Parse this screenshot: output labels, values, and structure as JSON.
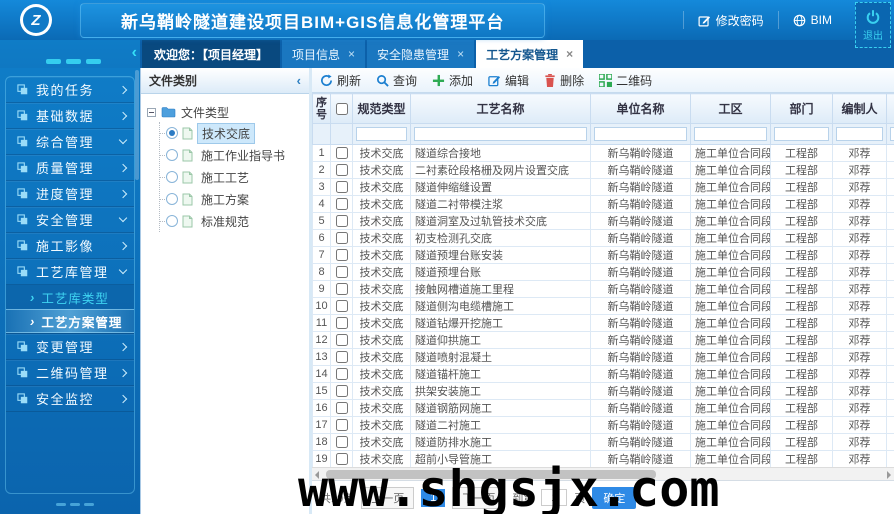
{
  "header": {
    "title": "新乌鞘岭隧道建设项目BIM+GIS信息化管理平台",
    "logo_letter": "Z",
    "actions": {
      "change_password": "修改密码",
      "bim": "BIM",
      "logout": "退出"
    }
  },
  "tabbar": {
    "welcome": "欢迎您：【项目经理】",
    "tabs": [
      {
        "label": "项目信息",
        "active": false
      },
      {
        "label": "安全隐患管理",
        "active": false
      },
      {
        "label": "工艺方案管理",
        "active": true
      }
    ]
  },
  "sidebar": {
    "items": [
      {
        "label": "我的任务",
        "arrow": "right"
      },
      {
        "label": "基础数据",
        "arrow": "right"
      },
      {
        "label": "综合管理",
        "arrow": "down"
      },
      {
        "label": "质量管理",
        "arrow": "right"
      },
      {
        "label": "进度管理",
        "arrow": "right"
      },
      {
        "label": "安全管理",
        "arrow": "down"
      },
      {
        "label": "施工影像",
        "arrow": "right"
      },
      {
        "label": "工艺库管理",
        "arrow": "down",
        "expanded": true,
        "children": [
          {
            "label": "工艺库类型",
            "active": false
          },
          {
            "label": "工艺方案管理",
            "active": true
          }
        ]
      },
      {
        "label": "变更管理",
        "arrow": "right"
      },
      {
        "label": "二维码管理",
        "arrow": "right"
      },
      {
        "label": "安全监控",
        "arrow": "right"
      }
    ]
  },
  "tree_panel": {
    "title": "文件类别",
    "root_label": "文件类型",
    "nodes": [
      {
        "label": "技术交底",
        "selected": true
      },
      {
        "label": "施工作业指导书",
        "selected": false
      },
      {
        "label": "施工工艺",
        "selected": false
      },
      {
        "label": "施工方案",
        "selected": false
      },
      {
        "label": "标准规范",
        "selected": false
      }
    ]
  },
  "toolbar": {
    "buttons": [
      {
        "label": "刷新",
        "icon": "refresh-icon",
        "color": "#1b7fd0"
      },
      {
        "label": "查询",
        "icon": "search-icon",
        "color": "#1b7fd0"
      },
      {
        "label": "添加",
        "icon": "plus-icon",
        "color": "#2eaa53"
      },
      {
        "label": "编辑",
        "icon": "edit-icon",
        "color": "#1b7fd0"
      },
      {
        "label": "删除",
        "icon": "trash-icon",
        "color": "#d9534f"
      },
      {
        "label": "二维码",
        "icon": "qrcode-icon",
        "color": "#2eaa53"
      }
    ]
  },
  "table": {
    "seq_label": "序号",
    "columns": [
      "规范类型",
      "工艺名称",
      "单位名称",
      "工区",
      "部门",
      "编制人"
    ],
    "rows": [
      {
        "no": "1",
        "type": "技术交底",
        "name": "隧道综合接地",
        "unit": "新乌鞘岭隧道",
        "zone": "施工单位合同段",
        "dept": "工程部",
        "author": "邓荐"
      },
      {
        "no": "2",
        "type": "技术交底",
        "name": "二衬素砼段格栅及网片设置交底",
        "unit": "新乌鞘岭隧道",
        "zone": "施工单位合同段",
        "dept": "工程部",
        "author": "邓荐"
      },
      {
        "no": "3",
        "type": "技术交底",
        "name": "隧道伸缩缝设置",
        "unit": "新乌鞘岭隧道",
        "zone": "施工单位合同段",
        "dept": "工程部",
        "author": "邓荐"
      },
      {
        "no": "4",
        "type": "技术交底",
        "name": "隧道二衬带模注浆",
        "unit": "新乌鞘岭隧道",
        "zone": "施工单位合同段",
        "dept": "工程部",
        "author": "邓荐"
      },
      {
        "no": "5",
        "type": "技术交底",
        "name": "隧道洞室及过轨管技术交底",
        "unit": "新乌鞘岭隧道",
        "zone": "施工单位合同段",
        "dept": "工程部",
        "author": "邓荐"
      },
      {
        "no": "6",
        "type": "技术交底",
        "name": "初支检测孔交底",
        "unit": "新乌鞘岭隧道",
        "zone": "施工单位合同段",
        "dept": "工程部",
        "author": "邓荐"
      },
      {
        "no": "7",
        "type": "技术交底",
        "name": "隧道预埋台账安装",
        "unit": "新乌鞘岭隧道",
        "zone": "施工单位合同段",
        "dept": "工程部",
        "author": "邓荐"
      },
      {
        "no": "8",
        "type": "技术交底",
        "name": "隧道预埋台账",
        "unit": "新乌鞘岭隧道",
        "zone": "施工单位合同段",
        "dept": "工程部",
        "author": "邓荐"
      },
      {
        "no": "9",
        "type": "技术交底",
        "name": "接触网槽道施工里程",
        "unit": "新乌鞘岭隧道",
        "zone": "施工单位合同段",
        "dept": "工程部",
        "author": "邓荐"
      },
      {
        "no": "10",
        "type": "技术交底",
        "name": "隧道侧沟电缆槽施工",
        "unit": "新乌鞘岭隧道",
        "zone": "施工单位合同段",
        "dept": "工程部",
        "author": "邓荐"
      },
      {
        "no": "11",
        "type": "技术交底",
        "name": "隧道钻爆开挖施工",
        "unit": "新乌鞘岭隧道",
        "zone": "施工单位合同段",
        "dept": "工程部",
        "author": "邓荐"
      },
      {
        "no": "12",
        "type": "技术交底",
        "name": "隧道仰拱施工",
        "unit": "新乌鞘岭隧道",
        "zone": "施工单位合同段",
        "dept": "工程部",
        "author": "邓荐"
      },
      {
        "no": "13",
        "type": "技术交底",
        "name": "隧道喷射混凝土",
        "unit": "新乌鞘岭隧道",
        "zone": "施工单位合同段",
        "dept": "工程部",
        "author": "邓荐"
      },
      {
        "no": "14",
        "type": "技术交底",
        "name": "隧道锚杆施工",
        "unit": "新乌鞘岭隧道",
        "zone": "施工单位合同段",
        "dept": "工程部",
        "author": "邓荐"
      },
      {
        "no": "15",
        "type": "技术交底",
        "name": "拱架安装施工",
        "unit": "新乌鞘岭隧道",
        "zone": "施工单位合同段",
        "dept": "工程部",
        "author": "邓荐"
      },
      {
        "no": "16",
        "type": "技术交底",
        "name": "隧道钢筋网施工",
        "unit": "新乌鞘岭隧道",
        "zone": "施工单位合同段",
        "dept": "工程部",
        "author": "邓荐"
      },
      {
        "no": "17",
        "type": "技术交底",
        "name": "隧道二衬施工",
        "unit": "新乌鞘岭隧道",
        "zone": "施工单位合同段",
        "dept": "工程部",
        "author": "邓荐"
      },
      {
        "no": "18",
        "type": "技术交底",
        "name": "隧道防排水施工",
        "unit": "新乌鞘岭隧道",
        "zone": "施工单位合同段",
        "dept": "工程部",
        "author": "邓荐"
      },
      {
        "no": "19",
        "type": "技术交底",
        "name": "超前小导管施工",
        "unit": "新乌鞘岭隧道",
        "zone": "施工单位合同段",
        "dept": "工程部",
        "author": "邓荐"
      }
    ]
  },
  "pagination": {
    "total": "共19条",
    "prev": "上一页",
    "page": "1",
    "next": "下一页",
    "jump_prefix": "到第",
    "jump_value": "1",
    "jump_suffix": "页",
    "confirm": "确定"
  },
  "watermark": {
    "text": "www.shgsjx.com"
  },
  "colors": {
    "header_blue": "#0f7cc7",
    "tabbar_blue": "#0c60a9",
    "accent_cyan": "#35cdee",
    "active_page_blue": "#2e8ae6",
    "add_green": "#2eaa53",
    "delete_red": "#d9534f"
  }
}
